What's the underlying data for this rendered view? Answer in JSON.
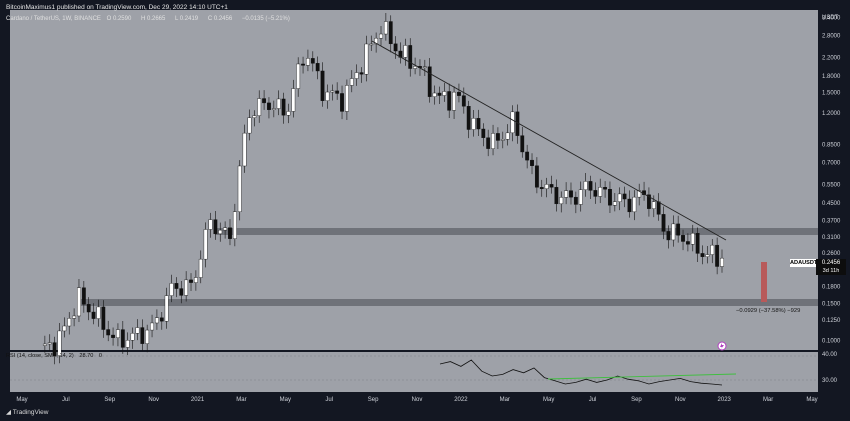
{
  "header": {
    "published": "BitcoinMaximus1 published on TradingView.com, Dec 29, 2022 14:10 UTC+1",
    "symbol_line": "Cardano / TetherUS, 1W, BINANCE",
    "ohlc": [
      {
        "label": "O",
        "value": "0.2590"
      },
      {
        "label": "H",
        "value": "0.2665"
      },
      {
        "label": "L",
        "value": "0.2419"
      },
      {
        "label": "C",
        "value": "0.2456"
      },
      {
        "label": "",
        "value": "−0.0135 (−5.21%)"
      }
    ]
  },
  "axis": {
    "currency": "USDT",
    "price_labels": [
      "3.4000",
      "2.8000",
      "2.2000",
      "1.8000",
      "1.5000",
      "1.2000",
      "0.8500",
      "0.7000",
      "0.5500",
      "0.4500",
      "0.3700",
      "0.3100",
      "0.2600",
      "0.2100",
      "0.1800",
      "0.1500",
      "0.1250",
      "0.1000"
    ],
    "rsi_labels": [
      "40.00",
      "30.00"
    ]
  },
  "time_labels": [
    "May",
    "Jul",
    "Sep",
    "Nov",
    "2021",
    "Mar",
    "May",
    "Jul",
    "Sep",
    "Nov",
    "2022",
    "Mar",
    "May",
    "Jul",
    "Sep",
    "Nov",
    "2023",
    "Mar",
    "May"
  ],
  "price_tag": {
    "ticker": "ADAUSDT",
    "price": "0.2456",
    "countdown": "3d 11h"
  },
  "measure_label": "−0.0929 (−37.58%) −929",
  "rsi_legend": [
    {
      "text": "RSI (14, close, SMA, 14, 2)"
    },
    {
      "text": "28.70"
    },
    {
      "text": "0"
    }
  ],
  "brand": "TradingView",
  "colors": {
    "panel": "#9ea1a8",
    "bull": "#ffffff",
    "bear": "#111111",
    "trendline": "#222222",
    "zone": "#6f7279",
    "measure": "#b85a5a",
    "rsi_line": "#111111",
    "rsi_trend": "#3fbf3f"
  },
  "chart_data": {
    "type": "candlestick",
    "title": "Cardano / TetherUS, 1W, BINANCE",
    "ylabel": "USDT",
    "y_scale": "log",
    "ylim": [
      0.09,
      3.7
    ],
    "x_categories": [
      "May 2020",
      "Jul 2020",
      "Sep 2020",
      "Nov 2020",
      "Jan 2021",
      "Mar 2021",
      "May 2021",
      "Jul 2021",
      "Sep 2021",
      "Nov 2021",
      "Jan 2022",
      "Mar 2022",
      "May 2022",
      "Jul 2022",
      "Sep 2022",
      "Nov 2022",
      "Jan 2023",
      "Mar 2023",
      "May 2023"
    ],
    "close_series": [
      0.09,
      0.1,
      0.16,
      0.13,
      0.1,
      0.105,
      0.115,
      0.18,
      0.18,
      0.37,
      0.3,
      1.2,
      1.35,
      1.2,
      2.4,
      1.5,
      1.4,
      2.1,
      3.1,
      2.3,
      2.0,
      1.4,
      1.45,
      1.0,
      0.85,
      1.1,
      0.6,
      0.5,
      0.47,
      0.54,
      0.48,
      0.45,
      0.5,
      0.33,
      0.31,
      0.26,
      0.2456
    ],
    "support_zones": [
      [
        0.335,
        0.355
      ],
      [
        0.152,
        0.162
      ]
    ],
    "resistance_trendline": {
      "start": {
        "x": "Sep 2021",
        "y": 3.1
      },
      "end": {
        "x": "Dec 2022",
        "y": 0.32
      }
    },
    "last_price": 0.2456,
    "projection": {
      "from": 0.2456,
      "to": 0.1527,
      "change": "−0.0929 (−37.58%)"
    },
    "rsi": {
      "period": 14,
      "value": 28.7,
      "axis_labels": [
        40,
        30
      ],
      "series": [
        55,
        58,
        52,
        60,
        46,
        40,
        42,
        48,
        44,
        50,
        38,
        34,
        30,
        32,
        36,
        32,
        35,
        40,
        36,
        34,
        30,
        33,
        35,
        37,
        33,
        31,
        30,
        28.7
      ]
    }
  }
}
